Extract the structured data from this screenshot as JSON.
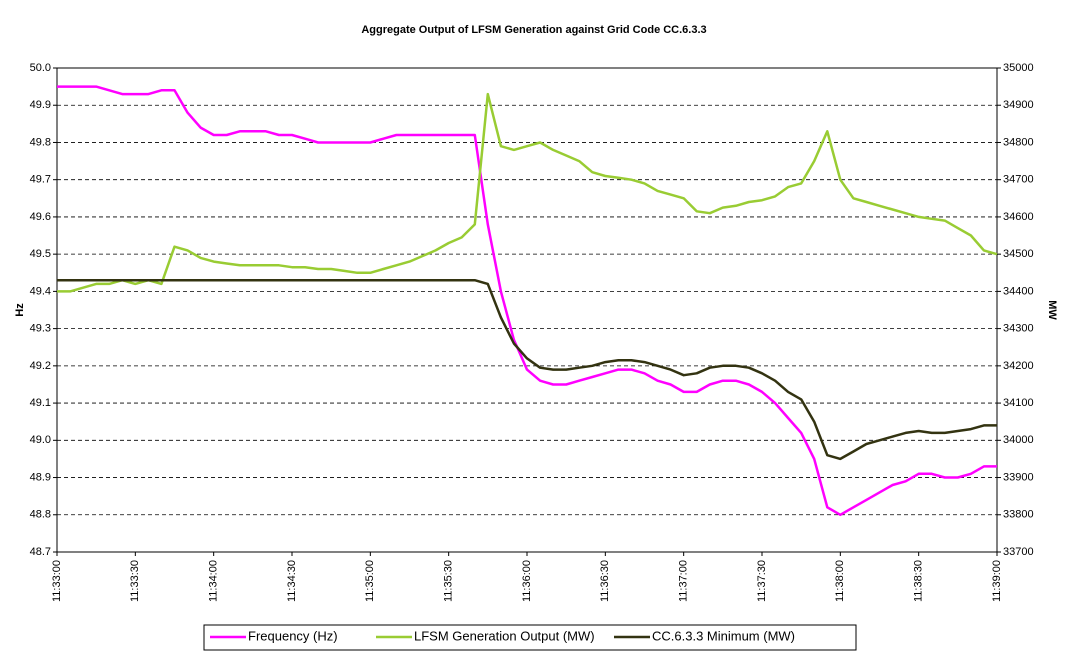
{
  "chart_data": {
    "type": "line",
    "title": "Aggregate Output of LFSM Generation against Grid Code CC.6.3.3",
    "ylabel": "Hz",
    "y2label": "MW",
    "x": [
      "11:33:00",
      "11:33:05",
      "11:33:10",
      "11:33:15",
      "11:33:20",
      "11:33:25",
      "11:33:30",
      "11:33:35",
      "11:33:40",
      "11:33:45",
      "11:33:50",
      "11:33:55",
      "11:34:00",
      "11:34:05",
      "11:34:10",
      "11:34:15",
      "11:34:20",
      "11:34:25",
      "11:34:30",
      "11:34:35",
      "11:34:40",
      "11:34:45",
      "11:34:50",
      "11:34:55",
      "11:35:00",
      "11:35:05",
      "11:35:10",
      "11:35:15",
      "11:35:20",
      "11:35:25",
      "11:35:30",
      "11:35:35",
      "11:35:40",
      "11:35:45",
      "11:35:50",
      "11:35:55",
      "11:36:00",
      "11:36:05",
      "11:36:10",
      "11:36:15",
      "11:36:20",
      "11:36:25",
      "11:36:30",
      "11:36:35",
      "11:36:40",
      "11:36:45",
      "11:36:50",
      "11:36:55",
      "11:37:00",
      "11:37:05",
      "11:37:10",
      "11:37:15",
      "11:37:20",
      "11:37:25",
      "11:37:30",
      "11:37:35",
      "11:37:40",
      "11:37:45",
      "11:37:50",
      "11:37:55",
      "11:38:00",
      "11:38:05",
      "11:38:10",
      "11:38:15",
      "11:38:20",
      "11:38:25",
      "11:38:30",
      "11:38:35",
      "11:38:40",
      "11:38:45",
      "11:38:50",
      "11:38:55",
      "11:39:00"
    ],
    "xlim": [
      "11:33:00",
      "11:39:00"
    ],
    "xticks": [
      "11:33:00",
      "11:33:30",
      "11:34:00",
      "11:34:30",
      "11:35:00",
      "11:35:30",
      "11:36:00",
      "11:36:30",
      "11:37:00",
      "11:37:30",
      "11:38:00",
      "11:38:30",
      "11:39:00"
    ],
    "ylim": [
      48.7,
      50.0
    ],
    "yticks": [
      48.7,
      48.8,
      48.9,
      {
        "value": 49.0,
        "label": "49.0"
      },
      49.1,
      49.2,
      49.3,
      49.4,
      49.5,
      49.6,
      49.7,
      49.8,
      49.9,
      {
        "value": 50.0,
        "label": "50.0"
      }
    ],
    "y2lim": [
      33700,
      35000
    ],
    "y2ticks": [
      33700,
      33800,
      33900,
      34000,
      34100,
      34200,
      34300,
      34400,
      34500,
      34600,
      34700,
      34800,
      34900,
      35000
    ],
    "grid": true,
    "legend": "bottom",
    "series": [
      {
        "name": "Frequency (Hz)",
        "color": "#ff00ff",
        "values": [
          49.95,
          49.95,
          49.95,
          49.95,
          49.94,
          49.93,
          49.93,
          49.93,
          49.94,
          49.94,
          49.88,
          49.84,
          49.82,
          49.82,
          49.83,
          49.83,
          49.83,
          49.82,
          49.82,
          49.81,
          49.8,
          49.8,
          49.8,
          49.8,
          49.8,
          49.81,
          49.82,
          49.82,
          49.82,
          49.82,
          49.82,
          49.82,
          49.82,
          49.58,
          49.4,
          49.27,
          49.19,
          49.16,
          49.15,
          49.15,
          49.16,
          49.17,
          49.18,
          49.19,
          49.19,
          49.18,
          49.16,
          49.15,
          49.13,
          49.13,
          49.15,
          49.16,
          49.16,
          49.15,
          49.13,
          49.1,
          49.06,
          49.02,
          48.95,
          48.82,
          48.8,
          48.82,
          48.84,
          48.86,
          48.88,
          48.89,
          48.91,
          48.91,
          48.9,
          48.9,
          48.91,
          48.93,
          48.93
        ]
      },
      {
        "name": "LFSM Generation Output (MW)",
        "color": "#99cc33",
        "axis": "y2",
        "values": [
          34400,
          34400,
          34410,
          34420,
          34420,
          34430,
          34420,
          34430,
          34420,
          34520,
          34510,
          34490,
          34480,
          34475,
          34470,
          34470,
          34470,
          34470,
          34465,
          34465,
          34460,
          34460,
          34455,
          34450,
          34450,
          34460,
          34470,
          34480,
          34495,
          34510,
          34530,
          34545,
          34580,
          34930,
          34790,
          34780,
          34790,
          34800,
          34780,
          34765,
          34750,
          34720,
          34710,
          34705,
          34700,
          34690,
          34670,
          34660,
          34650,
          34615,
          34610,
          34625,
          34630,
          34640,
          34645,
          34655,
          34680,
          34690,
          34750,
          34830,
          34700,
          34650,
          34640,
          34630,
          34620,
          34610,
          34600,
          34595,
          34590,
          34570,
          34550,
          34510,
          34500
        ]
      },
      {
        "name": "CC.6.3.3 Minimum (MW)",
        "color": "#333311",
        "axis": "y2",
        "values": [
          34430,
          34430,
          34430,
          34430,
          34430,
          34430,
          34430,
          34430,
          34430,
          34430,
          34430,
          34430,
          34430,
          34430,
          34430,
          34430,
          34430,
          34430,
          34430,
          34430,
          34430,
          34430,
          34430,
          34430,
          34430,
          34430,
          34430,
          34430,
          34430,
          34430,
          34430,
          34430,
          34430,
          34420,
          34330,
          34260,
          34220,
          34195,
          34190,
          34190,
          34195,
          34200,
          34210,
          34215,
          34215,
          34210,
          34200,
          34190,
          34175,
          34180,
          34195,
          34200,
          34200,
          34195,
          34180,
          34160,
          34130,
          34110,
          34050,
          33960,
          33950,
          33970,
          33990,
          34000,
          34010,
          34020,
          34025,
          34020,
          34020,
          34025,
          34030,
          34040,
          34040
        ]
      }
    ]
  }
}
